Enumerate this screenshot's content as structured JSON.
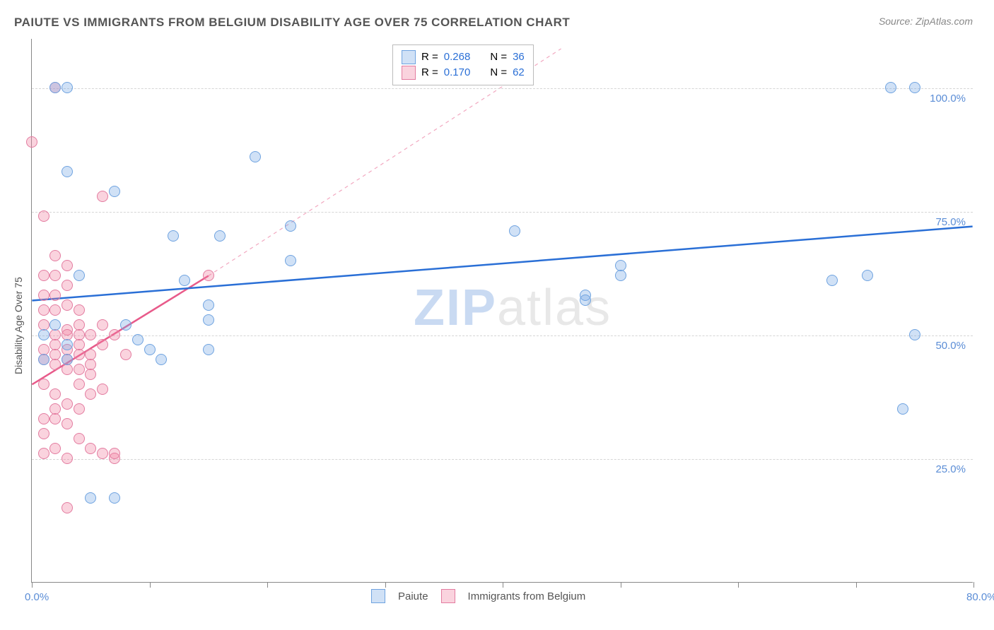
{
  "title": "PAIUTE VS IMMIGRANTS FROM BELGIUM DISABILITY AGE OVER 75 CORRELATION CHART",
  "source": "Source: ZipAtlas.com",
  "watermark": {
    "zip": "ZIP",
    "rest": "atlas"
  },
  "chart": {
    "type": "scatter",
    "xlim": [
      0,
      80
    ],
    "ylim": [
      0,
      110
    ],
    "xticks": [
      0,
      10,
      20,
      30,
      40,
      50,
      60,
      70,
      80
    ],
    "yticks": [
      25,
      50,
      75,
      100
    ],
    "xlabel_positions": {
      "0.0%": 0,
      "80.0%": 80
    },
    "ylabel_text": "Disability Age Over 75",
    "grid_h": [
      25,
      50,
      75,
      100
    ],
    "grid_color": "#d5d5d5",
    "background": "#ffffff",
    "point_radius": 8,
    "series": {
      "paiute": {
        "label": "Paiute",
        "fill": "rgba(120,170,230,0.35)",
        "stroke": "#6fa3e0",
        "r_value": "0.268",
        "n_value": "36",
        "trend": {
          "x1": 0,
          "y1": 57,
          "x2": 80,
          "y2": 72,
          "color": "#2a6fd6",
          "width": 2.5,
          "dash": "none"
        },
        "points": [
          [
            2,
            100
          ],
          [
            3,
            100
          ],
          [
            5,
            17
          ],
          [
            7,
            17
          ],
          [
            47,
            58
          ],
          [
            47,
            57
          ],
          [
            41,
            71
          ],
          [
            50,
            64
          ],
          [
            50,
            62
          ],
          [
            68,
            61
          ],
          [
            73,
            100
          ],
          [
            75,
            100
          ],
          [
            71,
            62
          ],
          [
            75,
            50
          ],
          [
            74,
            35
          ],
          [
            3,
            83
          ],
          [
            7,
            79
          ],
          [
            12,
            70
          ],
          [
            16,
            70
          ],
          [
            13,
            61
          ],
          [
            15,
            56
          ],
          [
            15,
            47
          ],
          [
            9,
            49
          ],
          [
            11,
            45
          ],
          [
            15,
            53
          ],
          [
            19,
            86
          ],
          [
            22,
            72
          ],
          [
            22,
            65
          ],
          [
            8,
            52
          ],
          [
            3,
            48
          ],
          [
            3,
            45
          ],
          [
            4,
            62
          ],
          [
            1,
            45
          ],
          [
            1,
            50
          ],
          [
            2,
            52
          ],
          [
            10,
            47
          ]
        ]
      },
      "belgium": {
        "label": "Immigrants from Belgium",
        "fill": "rgba(240,130,160,0.35)",
        "stroke": "#e37ca0",
        "r_value": "0.170",
        "n_value": "62",
        "trend": {
          "x1": 0,
          "y1": 40,
          "x2": 15,
          "y2": 62,
          "color": "#e85a8a",
          "width": 2.5,
          "dash": "none"
        },
        "trend_ext": {
          "x1": 15,
          "y1": 62,
          "x2": 45,
          "y2": 108,
          "color": "#f2a8c0",
          "width": 1.2,
          "dash": "5,5"
        },
        "points": [
          [
            2,
            100
          ],
          [
            0,
            89
          ],
          [
            1,
            74
          ],
          [
            2,
            66
          ],
          [
            3,
            64
          ],
          [
            1,
            62
          ],
          [
            2,
            62
          ],
          [
            3,
            51
          ],
          [
            4,
            52
          ],
          [
            2,
            48
          ],
          [
            3,
            45
          ],
          [
            1,
            45
          ],
          [
            2,
            44
          ],
          [
            3,
            43
          ],
          [
            4,
            40
          ],
          [
            5,
            42
          ],
          [
            1,
            40
          ],
          [
            2,
            38
          ],
          [
            3,
            36
          ],
          [
            4,
            35
          ],
          [
            2,
            33
          ],
          [
            3,
            32
          ],
          [
            1,
            30
          ],
          [
            4,
            29
          ],
          [
            5,
            27
          ],
          [
            6,
            26
          ],
          [
            7,
            25
          ],
          [
            3,
            25
          ],
          [
            2,
            27
          ],
          [
            1,
            26
          ],
          [
            3,
            15
          ],
          [
            6,
            39
          ],
          [
            7,
            26
          ],
          [
            5,
            44
          ],
          [
            6,
            48
          ],
          [
            7,
            50
          ],
          [
            8,
            46
          ],
          [
            5,
            46
          ],
          [
            4,
            48
          ],
          [
            3,
            47
          ],
          [
            2,
            46
          ],
          [
            1,
            47
          ],
          [
            2,
            50
          ],
          [
            3,
            50
          ],
          [
            4,
            50
          ],
          [
            1,
            52
          ],
          [
            2,
            55
          ],
          [
            1,
            55
          ],
          [
            3,
            56
          ],
          [
            4,
            55
          ],
          [
            1,
            58
          ],
          [
            2,
            58
          ],
          [
            15,
            62
          ],
          [
            6,
            78
          ],
          [
            3,
            60
          ],
          [
            4,
            46
          ],
          [
            5,
            50
          ],
          [
            6,
            52
          ],
          [
            4,
            43
          ],
          [
            5,
            38
          ],
          [
            2,
            35
          ],
          [
            1,
            33
          ]
        ]
      }
    },
    "legend_stats": {
      "r_label": "R =",
      "n_label": "N =",
      "r_color": "#2a6fd6",
      "text_color": "#555"
    },
    "legend_bottom": [
      "Paiute",
      "Immigrants from Belgium"
    ]
  }
}
